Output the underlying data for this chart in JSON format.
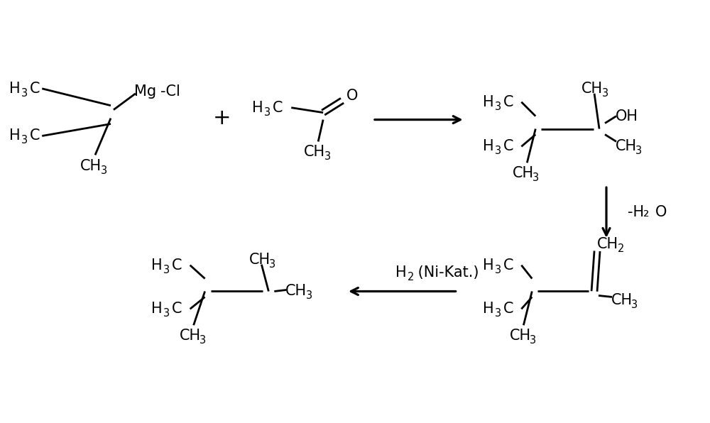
{
  "background_color": "#ffffff",
  "text_color": "#000000",
  "fs": 15,
  "fs3": 10.5,
  "lw": 2.0,
  "figsize": [
    10.0,
    5.96
  ],
  "dpi": 100,
  "xlim": [
    0,
    10
  ],
  "ylim": [
    0,
    5.96
  ]
}
